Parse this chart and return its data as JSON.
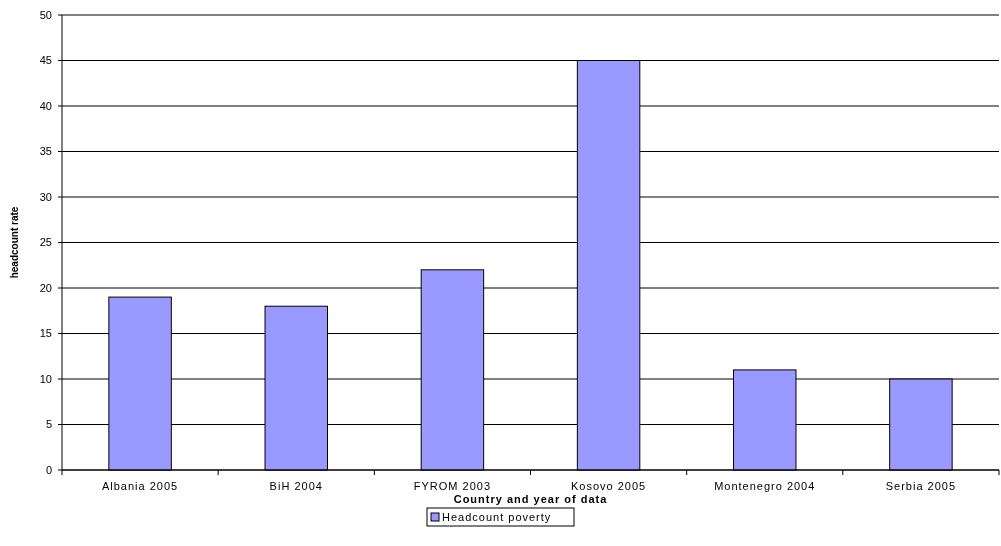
{
  "chart_data": {
    "type": "bar",
    "xlabel": "Country and year of data",
    "ylabel": "headcount rate",
    "categories": [
      "Albania 2005",
      "BiH 2004",
      "FYROM 2003",
      "Kosovo 2005",
      "Montenegro 2004",
      "Serbia 2005"
    ],
    "series": [
      {
        "name": "Headcount poverty",
        "color": "#9999ff",
        "values": [
          19,
          18,
          22,
          45,
          11,
          10
        ]
      }
    ],
    "ylim": [
      0,
      50
    ],
    "yticks": [
      0,
      5,
      10,
      15,
      20,
      25,
      30,
      35,
      40,
      45,
      50
    ],
    "grid": "y",
    "legend": "bottom"
  }
}
